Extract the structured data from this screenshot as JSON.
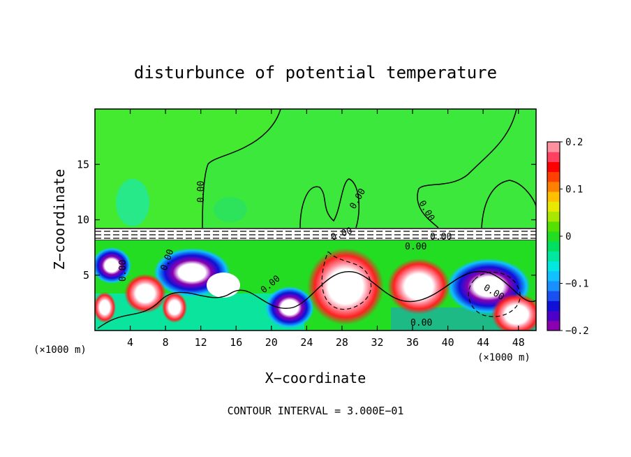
{
  "chart_data": {
    "type": "heatmap",
    "title": "disturbunce of potential temperature",
    "xlabel": "X−coordinate",
    "ylabel": "Z−coordinate",
    "x_unit": "(×1000 m)",
    "z_unit": "(×1000 m)",
    "footer": "CONTOUR INTERVAL = 3.000E−01",
    "xlim": [
      0,
      50
    ],
    "ylim": [
      0,
      20
    ],
    "x_ticks": [
      4,
      8,
      12,
      16,
      20,
      24,
      28,
      32,
      36,
      40,
      44,
      48
    ],
    "y_ticks": [
      5,
      10,
      15
    ],
    "grid": false,
    "colorbar": {
      "range": [
        -0.2,
        0.2
      ],
      "ticks": [
        "0.2",
        "0.1",
        "0",
        "−0.1",
        "−0.2"
      ],
      "tick_values": [
        0.2,
        0.1,
        0,
        -0.1,
        -0.2
      ],
      "colors": [
        "#8a00b0",
        "#4c00c8",
        "#1010d8",
        "#1a50f0",
        "#1890ff",
        "#10c0ff",
        "#00e8e0",
        "#00e8a0",
        "#00e060",
        "#22dd22",
        "#55e000",
        "#a8e800",
        "#e8e800",
        "#ffc000",
        "#ff8000",
        "#ff4000",
        "#ff0000",
        "#ff4060",
        "#ff90a0"
      ]
    },
    "contour_labels": [
      "0.00",
      "0.00",
      "0.00",
      "0.00",
      "0.00",
      "0.00",
      "0.00",
      "0.00",
      "0.00",
      "0.00",
      "0.00"
    ]
  }
}
